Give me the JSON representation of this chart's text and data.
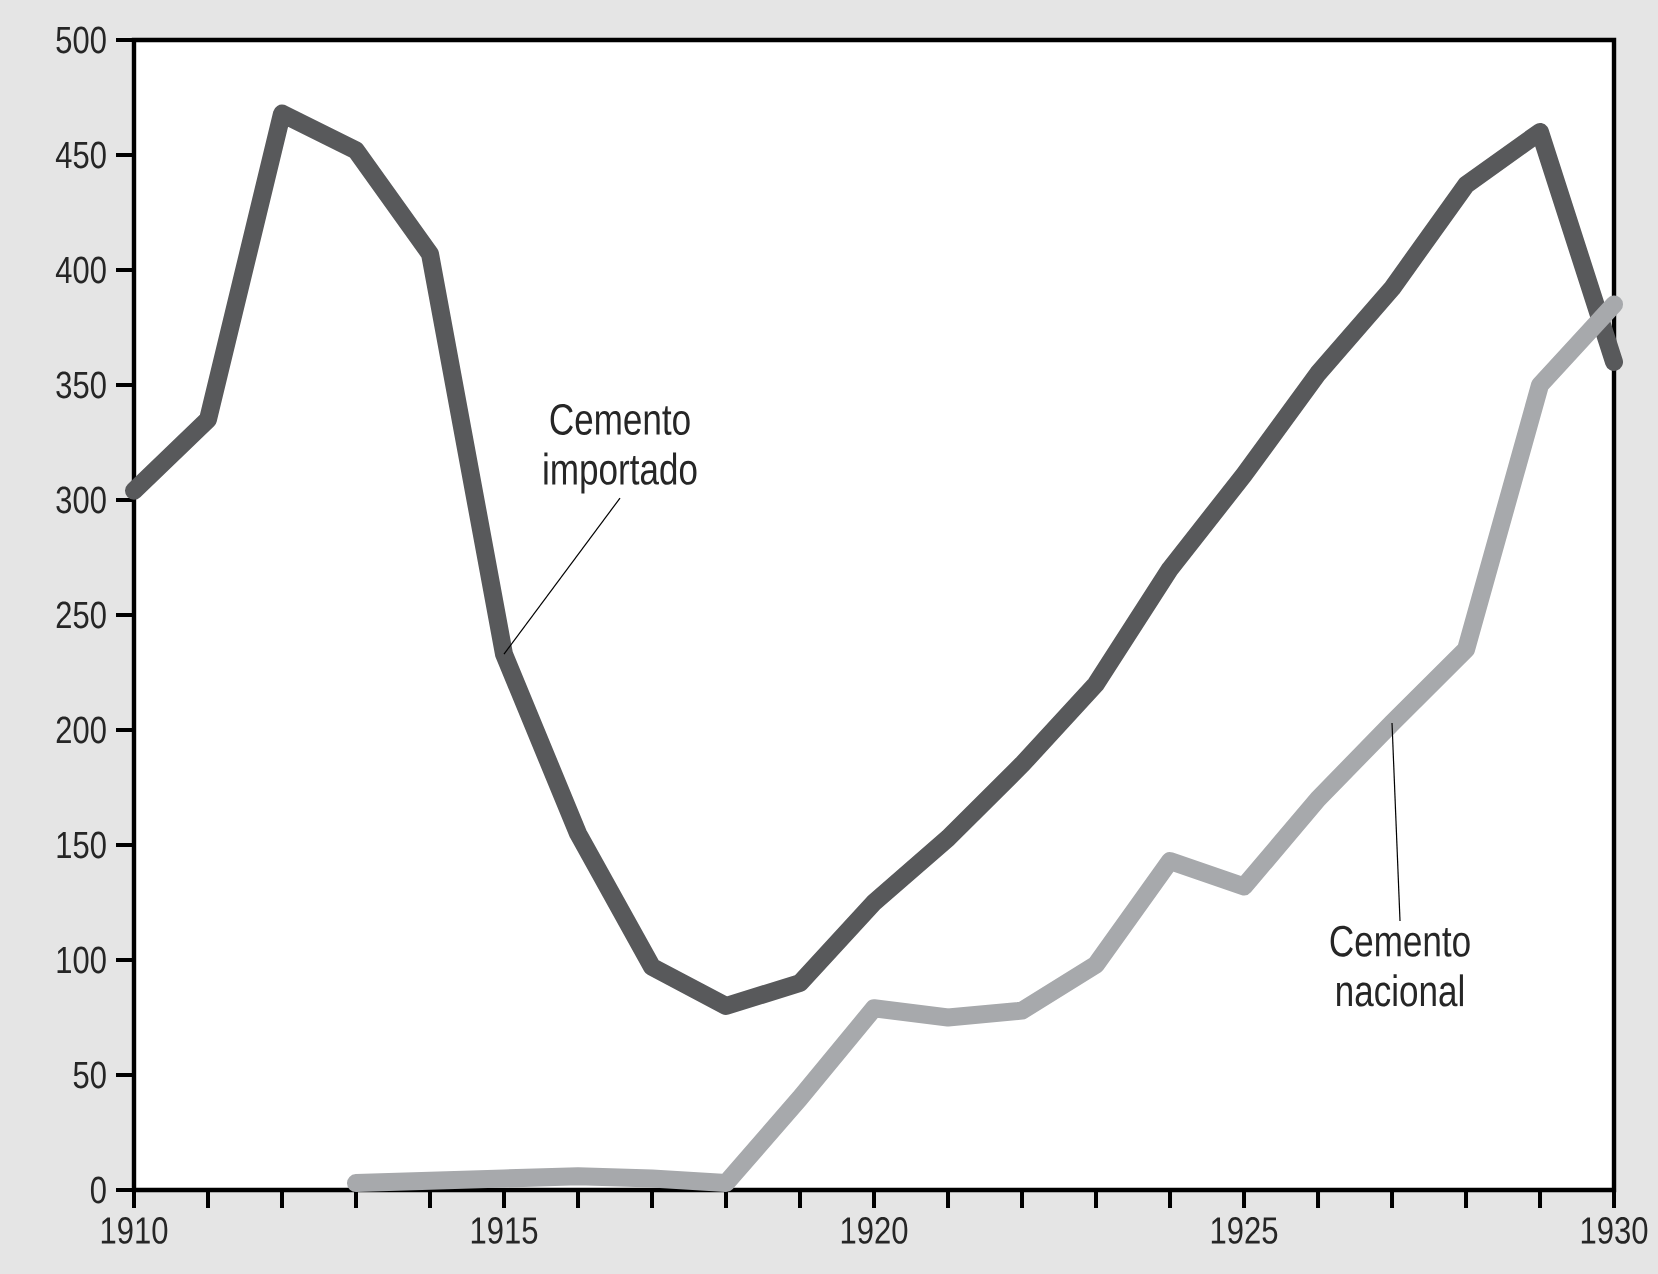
{
  "chart_data": {
    "type": "line",
    "x": [
      1910,
      1911,
      1912,
      1913,
      1914,
      1915,
      1916,
      1917,
      1918,
      1919,
      1920,
      1921,
      1922,
      1923,
      1924,
      1925,
      1926,
      1927,
      1928,
      1929,
      1930
    ],
    "series": [
      {
        "name": "Cemento importado",
        "color": "#58595b",
        "values": [
          304,
          335,
          468,
          452,
          407,
          233,
          155,
          97,
          80,
          90,
          125,
          153,
          185,
          220,
          270,
          311,
          355,
          392,
          437,
          460,
          360
        ]
      },
      {
        "name": "Cemento nacional",
        "color": "#a7a9ac",
        "values": [
          null,
          null,
          null,
          3,
          4,
          5,
          6,
          5,
          3,
          40,
          79,
          75,
          78,
          98,
          143,
          132,
          170,
          203,
          235,
          350,
          385
        ]
      }
    ],
    "xlim": [
      1910,
      1930
    ],
    "xticks": [
      1910,
      {
        "value": 1911,
        "label": null
      },
      {
        "value": 1912,
        "label": null
      },
      {
        "value": 1913,
        "label": null
      },
      {
        "value": 1914,
        "label": null
      },
      1915,
      {
        "value": 1916,
        "label": null
      },
      {
        "value": 1917,
        "label": null
      },
      {
        "value": 1918,
        "label": null
      },
      {
        "value": 1919,
        "label": null
      },
      1920,
      {
        "value": 1921,
        "label": null
      },
      {
        "value": 1922,
        "label": null
      },
      {
        "value": 1923,
        "label": null
      },
      {
        "value": 1924,
        "label": null
      },
      1925,
      {
        "value": 1926,
        "label": null
      },
      {
        "value": 1927,
        "label": null
      },
      {
        "value": 1928,
        "label": null
      },
      {
        "value": 1929,
        "label": null
      },
      1930
    ],
    "ylim": [
      0,
      500
    ],
    "yticks": [
      0,
      50,
      100,
      150,
      200,
      250,
      300,
      350,
      400,
      450,
      500
    ],
    "grid": false,
    "legend": false,
    "marker": "none",
    "line_style": "solid"
  }
}
